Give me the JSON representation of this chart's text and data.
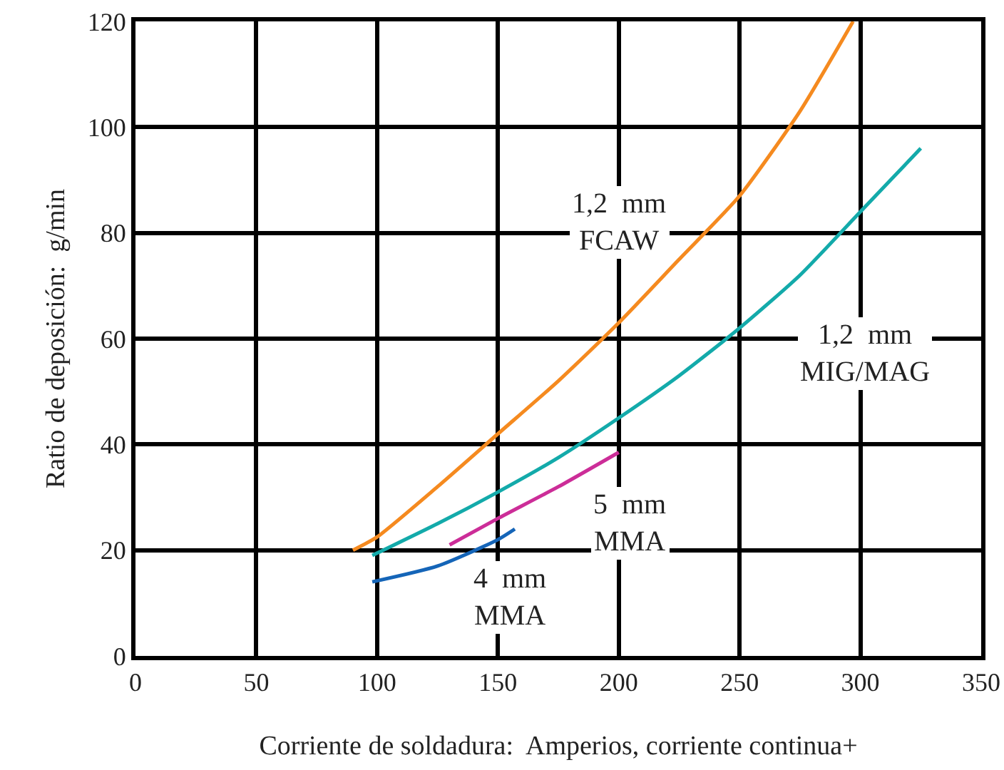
{
  "chart_data": {
    "type": "line",
    "xlabel": "Corriente de soldadura:  Amperios, corriente continua+",
    "ylabel": "Ratio de deposición:  g/min",
    "xlim": [
      0,
      350
    ],
    "xticks": [
      0,
      50,
      100,
      150,
      200,
      250,
      300,
      350
    ],
    "ylim": [
      0,
      120
    ],
    "yticks": [
      0,
      20,
      40,
      60,
      80,
      100,
      120
    ],
    "grid": true,
    "legend": false,
    "marker": "none",
    "line_style": "solid",
    "series": [
      {
        "name": "1,2  mm FCAW",
        "color": "#f58a1f",
        "x": [
          90,
          100,
          125,
          150,
          175,
          200,
          225,
          250,
          275,
          297
        ],
        "values": [
          20,
          22.5,
          32,
          42,
          52,
          63,
          75,
          87,
          103,
          120
        ]
      },
      {
        "name": "1,2  mm MIG/MAG",
        "color": "#13aaaa",
        "x": [
          98,
          125,
          150,
          175,
          200,
          225,
          250,
          275,
          300,
          325
        ],
        "values": [
          19,
          25,
          31,
          37.5,
          45,
          53,
          62,
          72,
          84,
          96
        ]
      },
      {
        "name": "5  mm MMA",
        "color": "#cc2d98",
        "x": [
          130,
          150,
          175,
          200
        ],
        "values": [
          21,
          26,
          32,
          38.5
        ]
      },
      {
        "name": "4  mm MMA",
        "color": "#1565b8",
        "x": [
          98,
          125,
          150,
          157
        ],
        "values": [
          14,
          17,
          22,
          24
        ]
      }
    ]
  }
}
